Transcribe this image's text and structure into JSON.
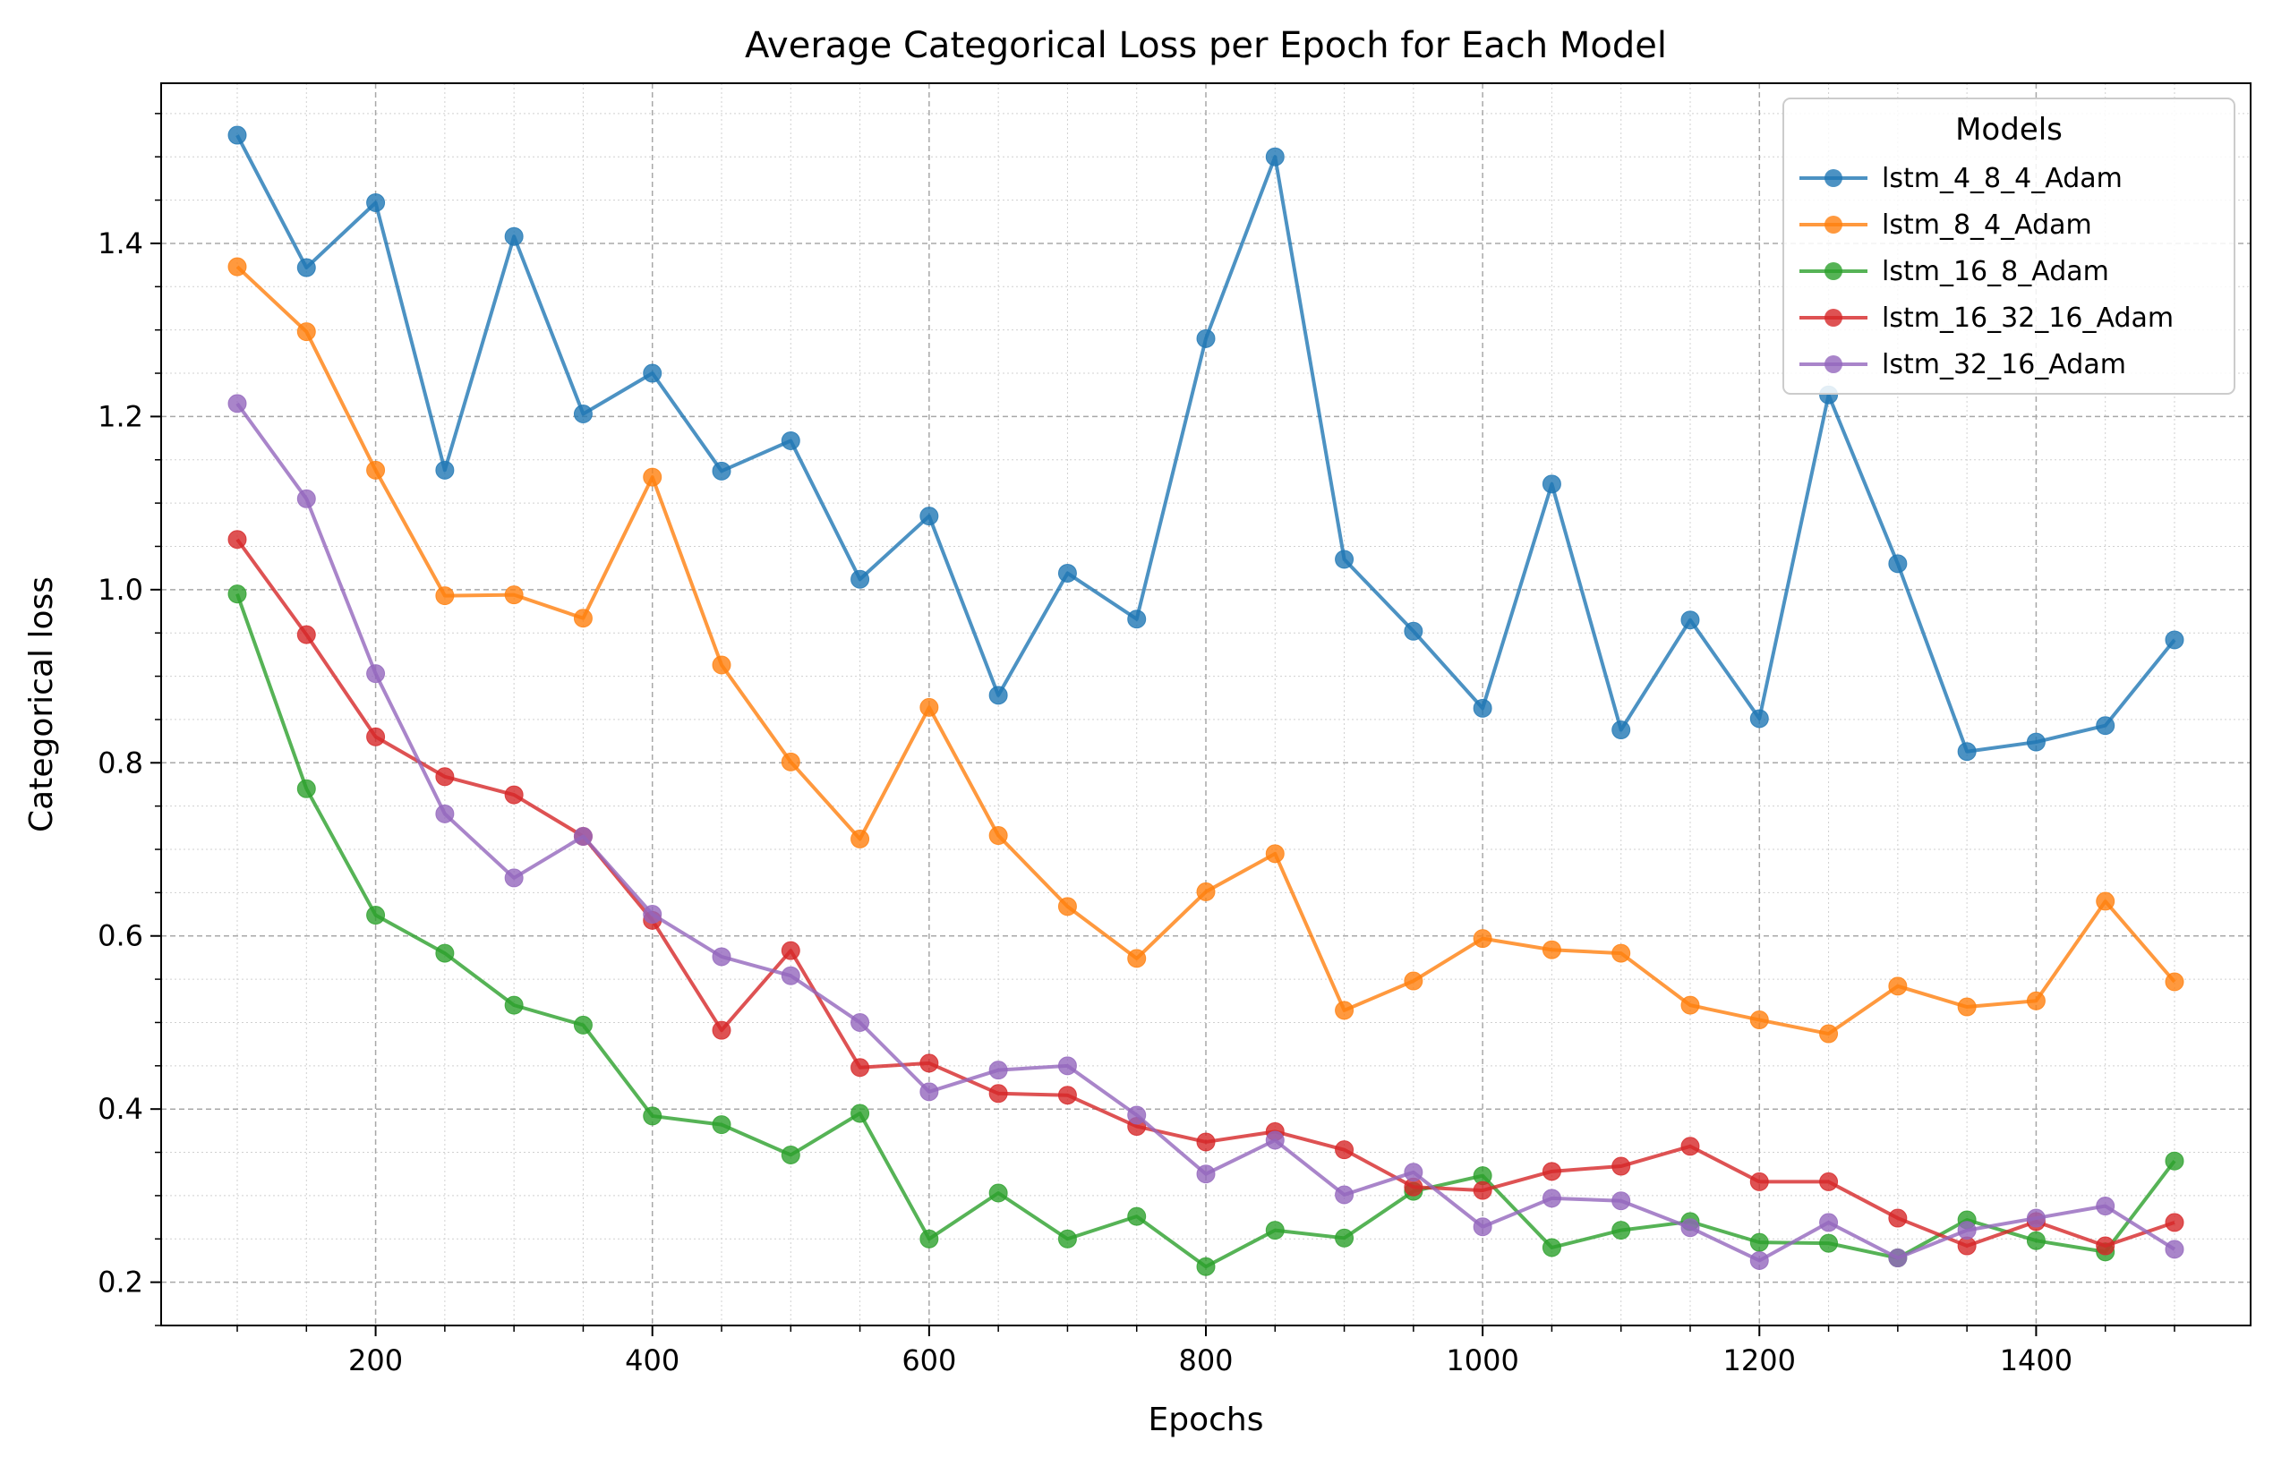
{
  "chart_data": {
    "type": "line",
    "title": "Average Categorical Loss per Epoch for Each Model",
    "xlabel": "Epochs",
    "ylabel": "Categorical loss",
    "xlim": [
      45,
      1555
    ],
    "ylim": [
      0.15,
      1.585
    ],
    "xticks": [
      200,
      400,
      600,
      800,
      1000,
      1200,
      1400
    ],
    "yticks": [
      0.2,
      0.4,
      0.6,
      0.8,
      1.0,
      1.2,
      1.4
    ],
    "xtick_labels": [
      "200",
      "400",
      "600",
      "800",
      "1000",
      "1200",
      "1400"
    ],
    "ytick_labels": [
      "0.2",
      "0.4",
      "0.6",
      "0.8",
      "1.0",
      "1.2",
      "1.4"
    ],
    "grid": true,
    "legend": {
      "title": "Models",
      "placement": "top-right"
    },
    "x": [
      100,
      150,
      200,
      250,
      300,
      350,
      400,
      450,
      500,
      550,
      600,
      650,
      700,
      750,
      800,
      850,
      900,
      950,
      1000,
      1050,
      1100,
      1150,
      1200,
      1250,
      1300,
      1350,
      1400,
      1450,
      1500
    ],
    "series": [
      {
        "name": "lstm_4_8_4_Adam",
        "color": "#1f77b4",
        "values": [
          1.525,
          1.372,
          1.447,
          1.138,
          1.408,
          1.203,
          1.25,
          1.137,
          1.172,
          1.012,
          1.085,
          0.878,
          1.019,
          0.966,
          1.29,
          1.5,
          1.035,
          0.952,
          0.863,
          1.122,
          0.838,
          0.965,
          0.851,
          1.225,
          1.03,
          0.813,
          0.824,
          0.843,
          0.942
        ]
      },
      {
        "name": "lstm_8_4_Adam",
        "color": "#ff7f0e",
        "values": [
          1.373,
          1.298,
          1.138,
          0.993,
          0.994,
          0.967,
          1.13,
          0.913,
          0.801,
          0.712,
          0.864,
          0.716,
          0.634,
          0.574,
          0.651,
          0.695,
          0.514,
          0.548,
          0.597,
          0.584,
          0.58,
          0.52,
          0.503,
          0.487,
          0.542,
          0.518,
          0.525,
          0.64,
          0.547
        ]
      },
      {
        "name": "lstm_16_8_Adam",
        "color": "#2ca02c",
        "values": [
          0.995,
          0.77,
          0.624,
          0.58,
          0.52,
          0.497,
          0.392,
          0.382,
          0.347,
          0.395,
          0.25,
          0.303,
          0.25,
          0.276,
          0.218,
          0.26,
          0.251,
          0.305,
          0.323,
          0.24,
          0.26,
          0.27,
          0.246,
          0.245,
          0.228,
          0.272,
          0.248,
          0.235,
          0.34
        ]
      },
      {
        "name": "lstm_16_32_16_Adam",
        "color": "#d62728",
        "values": [
          1.058,
          0.948,
          0.83,
          0.784,
          0.763,
          0.715,
          0.618,
          0.491,
          0.583,
          0.448,
          0.453,
          0.418,
          0.416,
          0.38,
          0.362,
          0.374,
          0.353,
          0.31,
          0.306,
          0.328,
          0.334,
          0.357,
          0.316,
          0.316,
          0.274,
          0.242,
          0.27,
          0.242,
          0.269
        ]
      },
      {
        "name": "lstm_32_16_Adam",
        "color": "#9467bd",
        "values": [
          1.215,
          1.105,
          0.903,
          0.741,
          0.667,
          0.715,
          0.625,
          0.576,
          0.554,
          0.5,
          0.42,
          0.445,
          0.45,
          0.393,
          0.325,
          0.364,
          0.301,
          0.327,
          0.264,
          0.297,
          0.294,
          0.263,
          0.225,
          0.269,
          0.228,
          0.26,
          0.274,
          0.288,
          0.238
        ]
      }
    ]
  }
}
